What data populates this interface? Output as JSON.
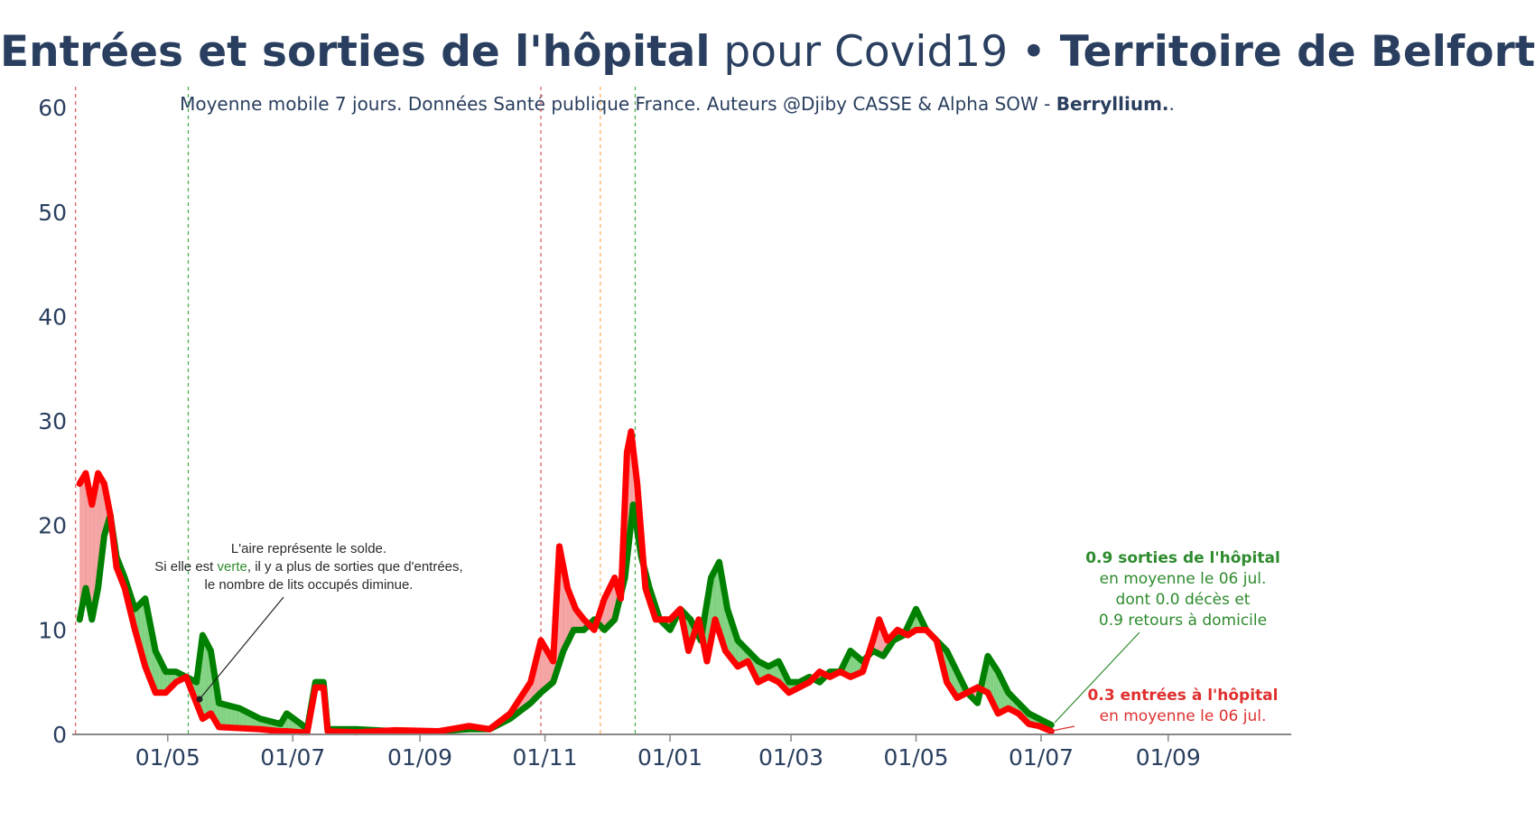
{
  "title": {
    "part1": "Entrées et sorties de l'hôpital",
    "part2": " pour Covid19 • ",
    "part3": "Territoire de Belfort"
  },
  "subtitle": {
    "text": "Moyenne mobile 7 jours. Données Santé publique France. Auteurs @Djiby CASSE & Alpha SOW - ",
    "bold": "Berryllium.",
    "end": "."
  },
  "colors": {
    "sorties": "#008000",
    "entrees": "#ff0000",
    "area_green": "#7fd17f",
    "area_red": "#f4a1a1",
    "text": "#2a3f5f",
    "axis": "#888888"
  },
  "annotation_solde": {
    "line1": "L'aire représente le solde.",
    "line2_a": "Si elle est ",
    "line2_green": "verte",
    "line2_b": ", il y a plus de sorties que d'entrées,",
    "line3": "le nombre de lits occupés diminue."
  },
  "annotation_sorties": {
    "bold": "0.9 sorties de l'hôpital",
    "line2": "en moyenne le 06 jul.",
    "line3": "dont 0.0 décès et",
    "line4": "0.9 retours à domicile"
  },
  "annotation_entrees": {
    "bold": "0.3 entrées à l'hôpital",
    "line2": "en moyenne le 06 jul."
  },
  "chart_data": {
    "type": "line",
    "title": "Entrées et sorties de l'hôpital pour Covid19 • Territoire de Belfort",
    "xlabel": "",
    "ylabel": "",
    "ylim": [
      0,
      62
    ],
    "xlim": [
      "2020-03-11",
      "2021-10-31"
    ],
    "y_ticks": [
      0,
      10,
      20,
      30,
      40,
      50,
      60
    ],
    "x_ticks": [
      {
        "date": "2020-05-01",
        "label": "01/05"
      },
      {
        "date": "2020-07-01",
        "label": "01/07"
      },
      {
        "date": "2020-09-01",
        "label": "01/09"
      },
      {
        "date": "2020-11-01",
        "label": "01/11"
      },
      {
        "date": "2021-01-01",
        "label": "01/01"
      },
      {
        "date": "2021-03-01",
        "label": "01/03"
      },
      {
        "date": "2021-05-01",
        "label": "01/05"
      },
      {
        "date": "2021-07-01",
        "label": "01/07"
      },
      {
        "date": "2021-09-01",
        "label": "01/09"
      }
    ],
    "vlines": [
      {
        "date": "2020-03-17",
        "color": "#e06666"
      },
      {
        "date": "2020-05-11",
        "color": "#4caf50"
      },
      {
        "date": "2020-10-30",
        "color": "#e06666"
      },
      {
        "date": "2020-11-28",
        "color": "#ffb060"
      },
      {
        "date": "2020-12-15",
        "color": "#4caf50"
      }
    ],
    "series": [
      {
        "name": "sorties",
        "points": [
          [
            "2020-03-19",
            11
          ],
          [
            "2020-03-22",
            14
          ],
          [
            "2020-03-25",
            11
          ],
          [
            "2020-03-28",
            14
          ],
          [
            "2020-03-31",
            19
          ],
          [
            "2020-04-03",
            21
          ],
          [
            "2020-04-06",
            17
          ],
          [
            "2020-04-10",
            15
          ],
          [
            "2020-04-15",
            12
          ],
          [
            "2020-04-20",
            13
          ],
          [
            "2020-04-25",
            8
          ],
          [
            "2020-04-30",
            6
          ],
          [
            "2020-05-05",
            6
          ],
          [
            "2020-05-10",
            5.5
          ],
          [
            "2020-05-15",
            5
          ],
          [
            "2020-05-18",
            9.5
          ],
          [
            "2020-05-22",
            8
          ],
          [
            "2020-05-26",
            3
          ],
          [
            "2020-06-05",
            2.5
          ],
          [
            "2020-06-15",
            1.5
          ],
          [
            "2020-06-25",
            1
          ],
          [
            "2020-06-28",
            2
          ],
          [
            "2020-07-05",
            1
          ],
          [
            "2020-07-08",
            0.5
          ],
          [
            "2020-07-12",
            5
          ],
          [
            "2020-07-16",
            5
          ],
          [
            "2020-07-18",
            0.5
          ],
          [
            "2020-08-01",
            0.5
          ],
          [
            "2020-08-20",
            0.3
          ],
          [
            "2020-09-10",
            0.3
          ],
          [
            "2020-09-25",
            0.5
          ],
          [
            "2020-10-05",
            0.5
          ],
          [
            "2020-10-15",
            1.5
          ],
          [
            "2020-10-25",
            3
          ],
          [
            "2020-10-30",
            4
          ],
          [
            "2020-11-05",
            5
          ],
          [
            "2020-11-10",
            8
          ],
          [
            "2020-11-15",
            10
          ],
          [
            "2020-11-20",
            10
          ],
          [
            "2020-11-25",
            11
          ],
          [
            "2020-11-30",
            10
          ],
          [
            "2020-12-05",
            11
          ],
          [
            "2020-12-10",
            15
          ],
          [
            "2020-12-14",
            22
          ],
          [
            "2020-12-18",
            17
          ],
          [
            "2020-12-22",
            14
          ],
          [
            "2020-12-27",
            11
          ],
          [
            "2021-01-01",
            10
          ],
          [
            "2021-01-06",
            12
          ],
          [
            "2021-01-11",
            11
          ],
          [
            "2021-01-16",
            9
          ],
          [
            "2021-01-21",
            15
          ],
          [
            "2021-01-25",
            16.5
          ],
          [
            "2021-01-29",
            12
          ],
          [
            "2021-02-03",
            9
          ],
          [
            "2021-02-08",
            8
          ],
          [
            "2021-02-13",
            7
          ],
          [
            "2021-02-18",
            6.5
          ],
          [
            "2021-02-23",
            7
          ],
          [
            "2021-02-28",
            5
          ],
          [
            "2021-03-05",
            5
          ],
          [
            "2021-03-10",
            5.5
          ],
          [
            "2021-03-15",
            5
          ],
          [
            "2021-03-20",
            6
          ],
          [
            "2021-03-25",
            6
          ],
          [
            "2021-03-30",
            8
          ],
          [
            "2021-04-05",
            7
          ],
          [
            "2021-04-10",
            8
          ],
          [
            "2021-04-15",
            7.5
          ],
          [
            "2021-04-20",
            9
          ],
          [
            "2021-04-25",
            9.5
          ],
          [
            "2021-05-01",
            12
          ],
          [
            "2021-05-06",
            10
          ],
          [
            "2021-05-11",
            9
          ],
          [
            "2021-05-16",
            8
          ],
          [
            "2021-05-21",
            6
          ],
          [
            "2021-05-26",
            4
          ],
          [
            "2021-05-31",
            3
          ],
          [
            "2021-06-05",
            7.5
          ],
          [
            "2021-06-10",
            6
          ],
          [
            "2021-06-15",
            4
          ],
          [
            "2021-06-20",
            3
          ],
          [
            "2021-06-25",
            2
          ],
          [
            "2021-06-30",
            1.5
          ],
          [
            "2021-07-06",
            0.9
          ]
        ]
      },
      {
        "name": "entrées",
        "points": [
          [
            "2020-03-19",
            24
          ],
          [
            "2020-03-22",
            25
          ],
          [
            "2020-03-25",
            22
          ],
          [
            "2020-03-28",
            25
          ],
          [
            "2020-03-31",
            24
          ],
          [
            "2020-04-03",
            21
          ],
          [
            "2020-04-06",
            16
          ],
          [
            "2020-04-10",
            14
          ],
          [
            "2020-04-15",
            10
          ],
          [
            "2020-04-20",
            6.5
          ],
          [
            "2020-04-25",
            4
          ],
          [
            "2020-04-30",
            4
          ],
          [
            "2020-05-05",
            5
          ],
          [
            "2020-05-10",
            5.5
          ],
          [
            "2020-05-15",
            3
          ],
          [
            "2020-05-18",
            1.5
          ],
          [
            "2020-05-22",
            2
          ],
          [
            "2020-05-26",
            0.7
          ],
          [
            "2020-06-05",
            0.6
          ],
          [
            "2020-06-15",
            0.5
          ],
          [
            "2020-06-25",
            0.3
          ],
          [
            "2020-06-28",
            0.3
          ],
          [
            "2020-07-05",
            0.2
          ],
          [
            "2020-07-08",
            0.2
          ],
          [
            "2020-07-12",
            4.5
          ],
          [
            "2020-07-16",
            4.5
          ],
          [
            "2020-07-18",
            0.3
          ],
          [
            "2020-08-01",
            0.2
          ],
          [
            "2020-08-20",
            0.4
          ],
          [
            "2020-09-10",
            0.3
          ],
          [
            "2020-09-25",
            0.8
          ],
          [
            "2020-10-05",
            0.5
          ],
          [
            "2020-10-15",
            2
          ],
          [
            "2020-10-25",
            5
          ],
          [
            "2020-10-30",
            9
          ],
          [
            "2020-11-05",
            7
          ],
          [
            "2020-11-08",
            18
          ],
          [
            "2020-11-12",
            14
          ],
          [
            "2020-11-16",
            12
          ],
          [
            "2020-11-20",
            11
          ],
          [
            "2020-11-25",
            10
          ],
          [
            "2020-11-30",
            13
          ],
          [
            "2020-12-05",
            15
          ],
          [
            "2020-12-08",
            13
          ],
          [
            "2020-12-11",
            27
          ],
          [
            "2020-12-13",
            29
          ],
          [
            "2020-12-16",
            24
          ],
          [
            "2020-12-20",
            14
          ],
          [
            "2020-12-25",
            11
          ],
          [
            "2021-01-01",
            11
          ],
          [
            "2021-01-06",
            12
          ],
          [
            "2021-01-10",
            8
          ],
          [
            "2021-01-15",
            11
          ],
          [
            "2021-01-19",
            7
          ],
          [
            "2021-01-23",
            11
          ],
          [
            "2021-01-28",
            8
          ],
          [
            "2021-02-03",
            6.5
          ],
          [
            "2021-02-08",
            7
          ],
          [
            "2021-02-13",
            5
          ],
          [
            "2021-02-18",
            5.5
          ],
          [
            "2021-02-23",
            5
          ],
          [
            "2021-02-28",
            4
          ],
          [
            "2021-03-05",
            4.5
          ],
          [
            "2021-03-10",
            5
          ],
          [
            "2021-03-15",
            6
          ],
          [
            "2021-03-20",
            5.5
          ],
          [
            "2021-03-25",
            6
          ],
          [
            "2021-03-30",
            5.5
          ],
          [
            "2021-04-05",
            6
          ],
          [
            "2021-04-10",
            9
          ],
          [
            "2021-04-13",
            11
          ],
          [
            "2021-04-17",
            9
          ],
          [
            "2021-04-22",
            10
          ],
          [
            "2021-04-27",
            9.5
          ],
          [
            "2021-05-01",
            10
          ],
          [
            "2021-05-06",
            10
          ],
          [
            "2021-05-11",
            9
          ],
          [
            "2021-05-16",
            5
          ],
          [
            "2021-05-21",
            3.5
          ],
          [
            "2021-05-26",
            4
          ],
          [
            "2021-05-31",
            4.5
          ],
          [
            "2021-06-05",
            4
          ],
          [
            "2021-06-10",
            2
          ],
          [
            "2021-06-15",
            2.5
          ],
          [
            "2021-06-20",
            2
          ],
          [
            "2021-06-25",
            1
          ],
          [
            "2021-06-30",
            0.8
          ],
          [
            "2021-07-06",
            0.3
          ]
        ]
      }
    ]
  }
}
